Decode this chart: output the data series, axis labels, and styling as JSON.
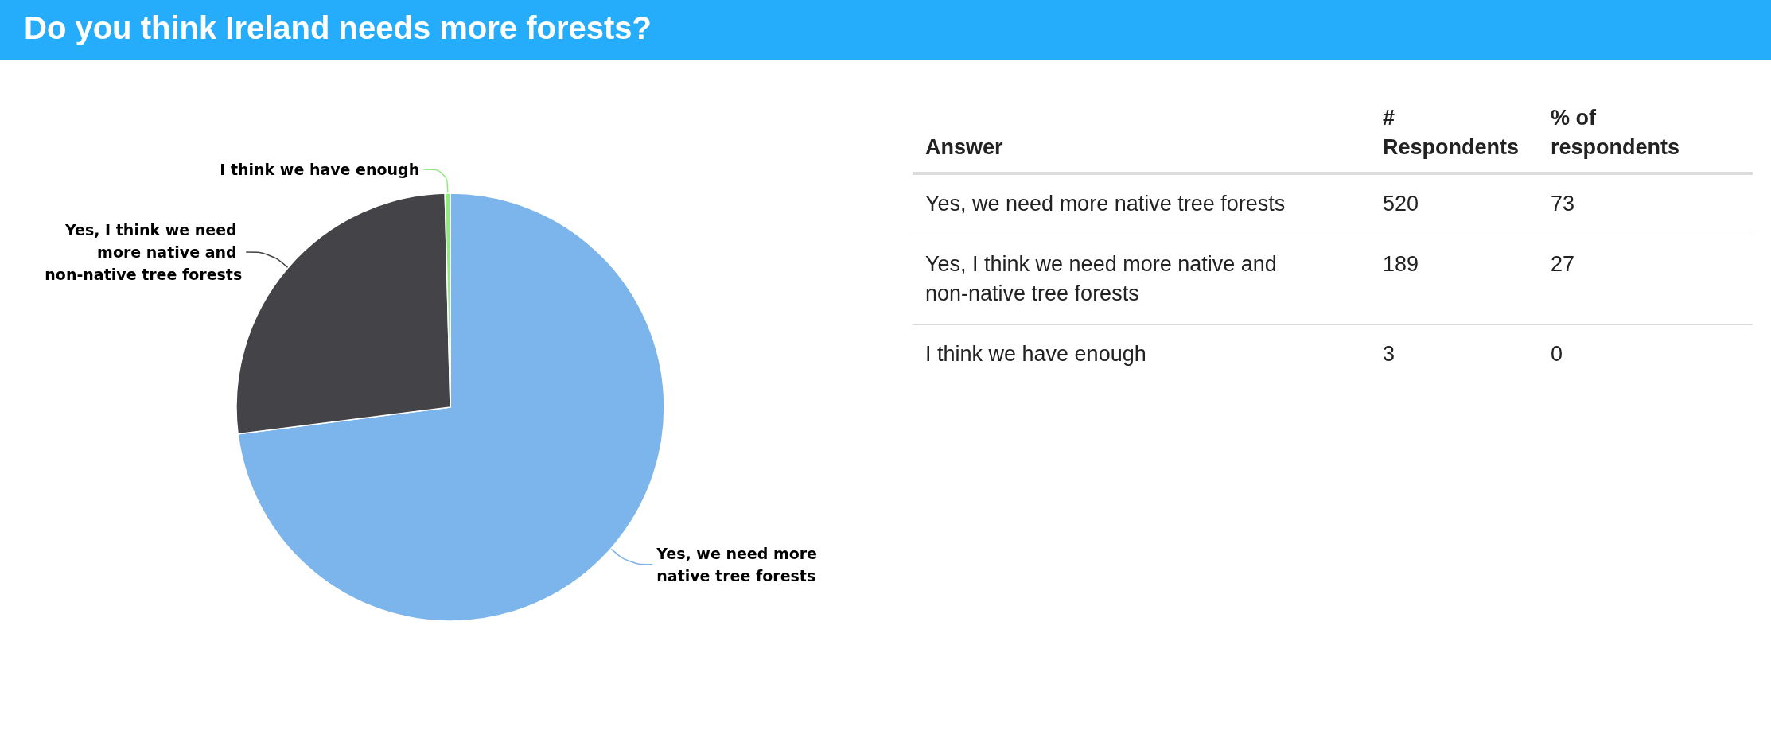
{
  "chart_data": [
    {
      "type": "pie",
      "title": "Do you think Ireland needs more forests?",
      "categories": [
        "Yes, we need more native tree forests",
        "Yes, I think we need more native and non-native tree forests",
        "I think we have enough"
      ],
      "values": [
        73,
        26.6,
        0.4
      ],
      "colors": [
        "#7cb5ec",
        "#434348",
        "#90ed7d"
      ]
    },
    {
      "type": "other",
      "xlabel": "Answer",
      "categories": [
        "Yes, we need more native tree forests",
        "Yes, I think we need more native and non-native tree forests",
        "I think we have enough"
      ],
      "series": [
        {
          "name": "# Respondents",
          "values": [
            520,
            189,
            3
          ]
        },
        {
          "name": "% of respondents",
          "values": [
            73,
            27,
            0
          ]
        }
      ],
      "data_labels": true
    }
  ]
}
